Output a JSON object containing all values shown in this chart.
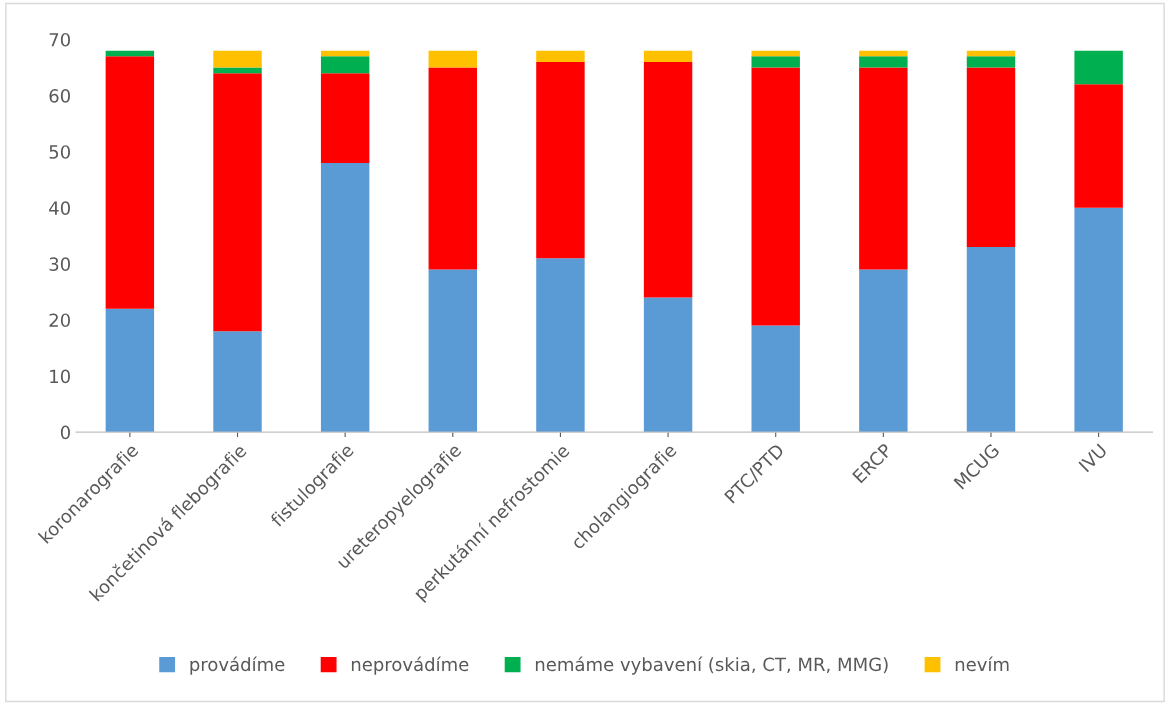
{
  "chart_data": {
    "type": "bar",
    "stacked": true,
    "categories": [
      "koronarografie",
      "končetinová flebografie",
      "fistulografie",
      "ureteropyelografie",
      "perkutánní nefrostomie",
      "cholangiografie",
      "PTC/PTD",
      "ERCP",
      "MCUG",
      "IVU"
    ],
    "series": [
      {
        "name": "provádíme",
        "color": "#5b9bd5",
        "values": [
          22,
          18,
          48,
          29,
          31,
          24,
          19,
          29,
          33,
          40
        ]
      },
      {
        "name": "neprovádíme",
        "color": "#ff0000",
        "values": [
          45,
          46,
          16,
          36,
          35,
          42,
          46,
          36,
          32,
          22
        ]
      },
      {
        "name": "nemáme vybavení (skia, CT, MR, MMG)",
        "color": "#00b050",
        "values": [
          1,
          1,
          3,
          0,
          0,
          0,
          2,
          2,
          2,
          6
        ]
      },
      {
        "name": "nevím",
        "color": "#ffc000",
        "values": [
          0,
          3,
          1,
          3,
          2,
          2,
          1,
          1,
          1,
          0
        ]
      }
    ],
    "ylim": [
      0,
      70
    ],
    "yticks": [
      0,
      10,
      20,
      30,
      40,
      50,
      60,
      70
    ],
    "grid": false,
    "legend": "bottom"
  }
}
